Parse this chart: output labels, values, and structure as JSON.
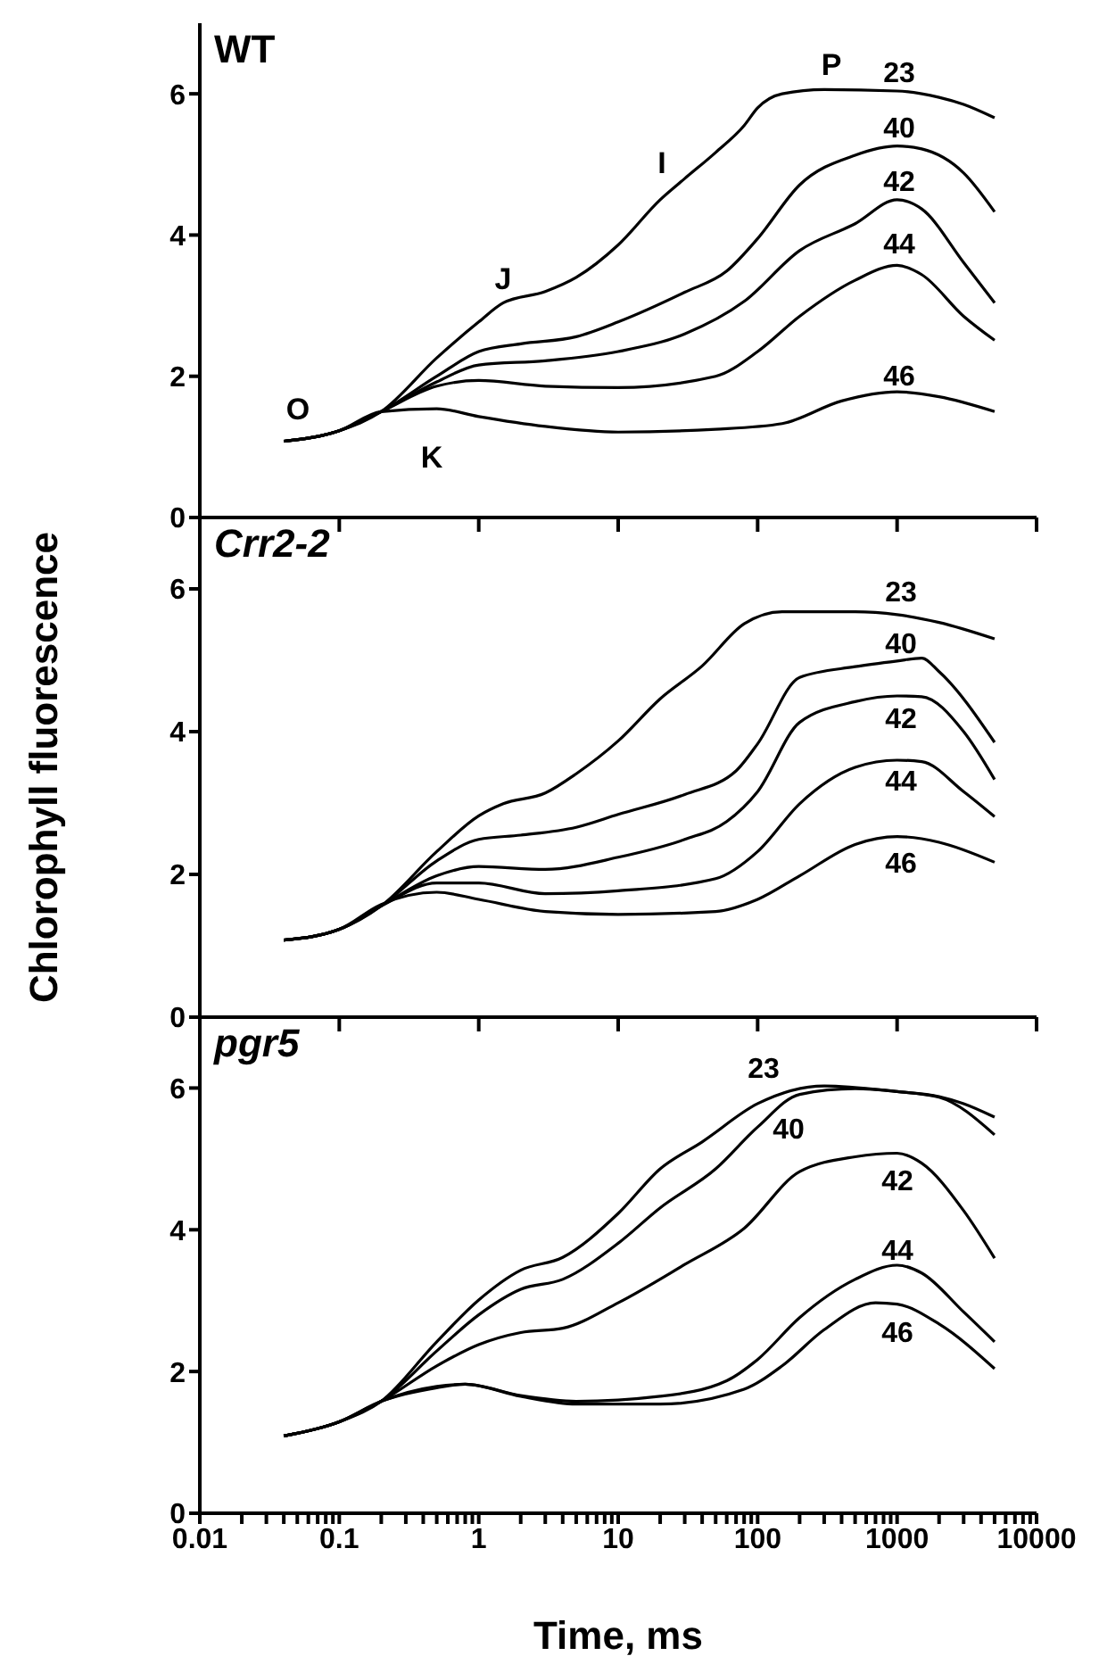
{
  "chart_data": [
    {
      "type": "line",
      "title": "WT",
      "log": "x",
      "marker": "none",
      "tick_labels": "y",
      "xlim": [
        0.01,
        10000
      ],
      "xticks": [
        0.01,
        0.1,
        1,
        10,
        100,
        1000,
        10000
      ],
      "ylim": [
        0,
        7
      ],
      "yticks": [
        0,
        2,
        4,
        6
      ],
      "series": [
        {
          "name": "23",
          "color": "#000000",
          "x": [
            0.04,
            0.1,
            0.2,
            0.5,
            1,
            1.5,
            3,
            5,
            10,
            20,
            30,
            50,
            80,
            100,
            150,
            300,
            1000,
            2000,
            3000,
            5000
          ],
          "values": [
            1.08,
            1.23,
            1.5,
            2.26,
            2.77,
            3.04,
            3.2,
            3.4,
            3.86,
            4.5,
            4.8,
            5.17,
            5.55,
            5.8,
            6.0,
            6.06,
            6.04,
            5.95,
            5.85,
            5.66
          ]
        },
        {
          "name": "40",
          "color": "#000000",
          "x": [
            0.04,
            0.1,
            0.2,
            0.5,
            1,
            2,
            5,
            10,
            30,
            60,
            100,
            200,
            500,
            1000,
            1500,
            3000,
            5000
          ],
          "values": [
            1.08,
            1.23,
            1.5,
            2.0,
            2.35,
            2.46,
            2.56,
            2.77,
            3.19,
            3.49,
            3.95,
            4.71,
            5.13,
            5.26,
            5.22,
            4.88,
            4.33
          ]
        },
        {
          "name": "42",
          "color": "#000000",
          "x": [
            0.04,
            0.1,
            0.2,
            0.5,
            1,
            3,
            10,
            30,
            80,
            200,
            500,
            1000,
            1500,
            3000,
            5000
          ],
          "values": [
            1.08,
            1.23,
            1.5,
            1.92,
            2.16,
            2.22,
            2.35,
            2.6,
            3.06,
            3.78,
            4.16,
            4.5,
            4.37,
            3.61,
            3.04
          ]
        },
        {
          "name": "44",
          "color": "#000000",
          "x": [
            0.04,
            0.1,
            0.2,
            0.5,
            1,
            3,
            10,
            50,
            100,
            200,
            500,
            1000,
            1500,
            3000,
            5000
          ],
          "values": [
            1.08,
            1.23,
            1.5,
            1.86,
            1.94,
            1.86,
            1.84,
            2.0,
            2.35,
            2.85,
            3.36,
            3.57,
            3.44,
            2.85,
            2.51
          ]
        },
        {
          "name": "46",
          "color": "#000000",
          "x": [
            0.04,
            0.1,
            0.2,
            0.5,
            1,
            3,
            10,
            50,
            150,
            400,
            1000,
            2000,
            5000
          ],
          "values": [
            1.08,
            1.23,
            1.5,
            1.54,
            1.43,
            1.29,
            1.21,
            1.25,
            1.33,
            1.65,
            1.78,
            1.71,
            1.5
          ]
        }
      ],
      "annotations": [
        "O",
        "K",
        "J",
        "I",
        "P"
      ]
    },
    {
      "type": "line",
      "title": "Crr2-2",
      "ylabel": "Chlorophyll fluorescence",
      "log": "x",
      "marker": "none",
      "tick_labels": "y",
      "xlim": [
        0.01,
        10000
      ],
      "xticks": [
        0.01,
        0.1,
        1,
        10,
        100,
        1000,
        10000
      ],
      "ylim": [
        0,
        7
      ],
      "yticks": [
        0,
        2,
        4,
        6
      ],
      "series": [
        {
          "name": "23",
          "color": "#000000",
          "x": [
            0.04,
            0.1,
            0.2,
            0.5,
            1,
            1.5,
            3,
            5,
            10,
            20,
            40,
            80,
            150,
            500,
            1000,
            2000,
            5000
          ],
          "values": [
            1.08,
            1.23,
            1.56,
            2.32,
            2.82,
            2.99,
            3.14,
            3.41,
            3.87,
            4.46,
            4.92,
            5.51,
            5.68,
            5.68,
            5.64,
            5.53,
            5.3
          ]
        },
        {
          "name": "40",
          "color": "#000000",
          "x": [
            0.04,
            0.1,
            0.2,
            0.5,
            1,
            2,
            5,
            10,
            30,
            70,
            100,
            200,
            500,
            1000,
            1500,
            2000,
            5000
          ],
          "values": [
            1.08,
            1.23,
            1.56,
            2.19,
            2.49,
            2.55,
            2.66,
            2.84,
            3.12,
            3.45,
            3.83,
            4.76,
            4.91,
            4.99,
            5.03,
            4.84,
            3.85
          ]
        },
        {
          "name": "42",
          "color": "#000000",
          "x": [
            0.04,
            0.1,
            0.2,
            0.5,
            1,
            3,
            10,
            30,
            60,
            100,
            200,
            500,
            1000,
            1500,
            3000,
            5000
          ],
          "values": [
            1.08,
            1.23,
            1.56,
            1.98,
            2.11,
            2.07,
            2.24,
            2.49,
            2.74,
            3.16,
            4.13,
            4.42,
            4.5,
            4.49,
            4.0,
            3.33
          ]
        },
        {
          "name": "44",
          "color": "#000000",
          "x": [
            0.04,
            0.1,
            0.2,
            0.5,
            1,
            3,
            10,
            50,
            100,
            200,
            500,
            1000,
            1500,
            3000,
            5000
          ],
          "values": [
            1.08,
            1.23,
            1.56,
            1.88,
            1.88,
            1.73,
            1.77,
            1.94,
            2.32,
            2.99,
            3.5,
            3.6,
            3.58,
            3.16,
            2.81
          ]
        },
        {
          "name": "46",
          "color": "#000000",
          "x": [
            0.04,
            0.1,
            0.2,
            0.5,
            1,
            3,
            10,
            50,
            100,
            200,
            500,
            1000,
            2000,
            5000
          ],
          "values": [
            1.08,
            1.23,
            1.58,
            1.75,
            1.65,
            1.48,
            1.44,
            1.48,
            1.65,
            1.98,
            2.42,
            2.53,
            2.45,
            2.17
          ]
        }
      ]
    },
    {
      "type": "line",
      "title": "pgr5",
      "xlabel": "Time, ms",
      "log": "x",
      "marker": "none",
      "xlim": [
        0.01,
        10000
      ],
      "xticks": [
        0.01,
        {
          "value": 0.02,
          "label": null
        },
        {
          "value": 0.03,
          "label": null
        },
        {
          "value": 0.04,
          "label": null
        },
        {
          "value": 0.05,
          "label": null
        },
        {
          "value": 0.06,
          "label": null
        },
        {
          "value": 0.07,
          "label": null
        },
        {
          "value": 0.08,
          "label": null
        },
        {
          "value": 0.09,
          "label": null
        },
        0.1,
        {
          "value": 0.2,
          "label": null
        },
        {
          "value": 0.3,
          "label": null
        },
        {
          "value": 0.4,
          "label": null
        },
        {
          "value": 0.5,
          "label": null
        },
        {
          "value": 0.6,
          "label": null
        },
        {
          "value": 0.7,
          "label": null
        },
        {
          "value": 0.8,
          "label": null
        },
        {
          "value": 0.9,
          "label": null
        },
        1,
        {
          "value": 2,
          "label": null
        },
        {
          "value": 3,
          "label": null
        },
        {
          "value": 4,
          "label": null
        },
        {
          "value": 5,
          "label": null
        },
        {
          "value": 6,
          "label": null
        },
        {
          "value": 7,
          "label": null
        },
        {
          "value": 8,
          "label": null
        },
        {
          "value": 9,
          "label": null
        },
        10,
        {
          "value": 20,
          "label": null
        },
        {
          "value": 30,
          "label": null
        },
        {
          "value": 40,
          "label": null
        },
        {
          "value": 50,
          "label": null
        },
        {
          "value": 60,
          "label": null
        },
        {
          "value": 70,
          "label": null
        },
        {
          "value": 80,
          "label": null
        },
        {
          "value": 90,
          "label": null
        },
        100,
        {
          "value": 200,
          "label": null
        },
        {
          "value": 300,
          "label": null
        },
        {
          "value": 400,
          "label": null
        },
        {
          "value": 500,
          "label": null
        },
        {
          "value": 600,
          "label": null
        },
        {
          "value": 700,
          "label": null
        },
        {
          "value": 800,
          "label": null
        },
        {
          "value": 900,
          "label": null
        },
        1000,
        {
          "value": 2000,
          "label": null
        },
        {
          "value": 3000,
          "label": null
        },
        {
          "value": 4000,
          "label": null
        },
        {
          "value": 5000,
          "label": null
        },
        {
          "value": 6000,
          "label": null
        },
        {
          "value": 7000,
          "label": null
        },
        {
          "value": 8000,
          "label": null
        },
        {
          "value": 9000,
          "label": null
        },
        10000
      ],
      "ylim": [
        0,
        7
      ],
      "yticks": [
        0,
        2,
        4,
        6
      ],
      "series": [
        {
          "name": "23",
          "color": "#000000",
          "x": [
            0.04,
            0.1,
            0.2,
            0.5,
            1,
            2,
            4,
            10,
            20,
            40,
            100,
            300,
            1000,
            2000,
            3000,
            5000
          ],
          "values": [
            1.09,
            1.29,
            1.58,
            2.42,
            3.01,
            3.43,
            3.61,
            4.23,
            4.86,
            5.24,
            5.78,
            6.03,
            5.95,
            5.88,
            5.78,
            5.59
          ]
        },
        {
          "name": "40",
          "color": "#000000",
          "x": [
            0.04,
            0.1,
            0.2,
            0.5,
            1,
            2,
            4,
            10,
            20,
            50,
            100,
            200,
            500,
            1000,
            2000,
            5000
          ],
          "values": [
            1.09,
            1.29,
            1.58,
            2.29,
            2.8,
            3.16,
            3.3,
            3.81,
            4.31,
            4.86,
            5.45,
            5.91,
            5.99,
            5.95,
            5.87,
            5.34
          ]
        },
        {
          "name": "42",
          "color": "#000000",
          "x": [
            0.04,
            0.1,
            0.2,
            0.5,
            1,
            2,
            4,
            10,
            30,
            80,
            200,
            500,
            1000,
            1500,
            3000,
            5000
          ],
          "values": [
            1.09,
            1.29,
            1.58,
            2.08,
            2.38,
            2.55,
            2.61,
            2.97,
            3.51,
            4.02,
            4.82,
            5.03,
            5.08,
            4.94,
            4.27,
            3.6
          ]
        },
        {
          "name": "44",
          "color": "#000000",
          "x": [
            0.04,
            0.1,
            0.2,
            0.5,
            0.8,
            2,
            5,
            20,
            60,
            100,
            200,
            500,
            1000,
            1500,
            3000,
            5000
          ],
          "values": [
            1.09,
            1.29,
            1.58,
            1.79,
            1.82,
            1.66,
            1.58,
            1.65,
            1.87,
            2.17,
            2.76,
            3.3,
            3.5,
            3.39,
            2.84,
            2.42
          ]
        },
        {
          "name": "46",
          "color": "#000000",
          "x": [
            0.04,
            0.1,
            0.2,
            0.5,
            0.8,
            2,
            5,
            20,
            80,
            150,
            300,
            700,
            1000,
            2000,
            5000
          ],
          "values": [
            1.09,
            1.29,
            1.58,
            1.77,
            1.82,
            1.65,
            1.54,
            1.54,
            1.75,
            2.08,
            2.59,
            2.97,
            2.95,
            2.67,
            2.04
          ]
        }
      ]
    }
  ]
}
